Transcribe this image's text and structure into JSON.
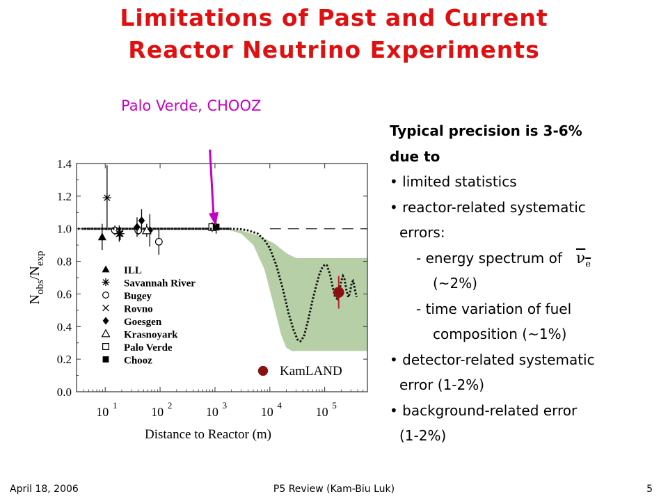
{
  "slide": {
    "title_line1": "Limitations of Past and Current",
    "title_line2": "Reactor Neutrino Experiments",
    "callout": "Palo Verde, CHOOZ",
    "text_lines": [
      {
        "text": "Typical precision is 3-6%",
        "indent": 0,
        "bold": true
      },
      {
        "text": "due to",
        "indent": 0,
        "bold": true
      },
      {
        "text": "• limited statistics",
        "indent": 0,
        "bold": false
      },
      {
        "text": "• reactor-related systematic",
        "indent": 0,
        "bold": false
      },
      {
        "text": "errors:",
        "indent": 14,
        "bold": false
      },
      {
        "text": "- energy spectrum of",
        "indent": 38,
        "bold": false,
        "symbol": "ν",
        "symbol_sub": "e"
      },
      {
        "text": "(~2%)",
        "indent": 62,
        "bold": false
      },
      {
        "text": "- time variation of fuel",
        "indent": 38,
        "bold": false
      },
      {
        "text": "composition (~1%)",
        "indent": 62,
        "bold": false
      },
      {
        "text": "• detector-related systematic",
        "indent": 0,
        "bold": false
      },
      {
        "text": "error (1-2%)",
        "indent": 14,
        "bold": false
      },
      {
        "text": "• background-related error",
        "indent": 0,
        "bold": false
      },
      {
        "text": "(1-2%)",
        "indent": 14,
        "bold": false
      }
    ],
    "footer_date": "April 18, 2006",
    "footer_center": "P5 Review (Kam-Biu Luk)",
    "footer_page": "5"
  },
  "chart_data": {
    "type": "scatter",
    "xlabel": "Distance to Reactor (m)",
    "ylabel": "N",
    "ylabel_sub1": "obs",
    "ylabel_mid": "/N",
    "ylabel_sub2": "exp",
    "xscale": "log",
    "xlim": [
      3,
      600000
    ],
    "ylim": [
      0.0,
      1.4
    ],
    "x_ticks": [
      {
        "value": 10,
        "base": "10",
        "exp": "1"
      },
      {
        "value": 100,
        "base": "10",
        "exp": "2"
      },
      {
        "value": 1000,
        "base": "10",
        "exp": "3"
      },
      {
        "value": 10000,
        "base": "10",
        "exp": "4"
      },
      {
        "value": 100000,
        "base": "10",
        "exp": "5"
      }
    ],
    "y_ticks": [
      {
        "value": 0.0,
        "label": "0.0"
      },
      {
        "value": 0.2,
        "label": "0.2"
      },
      {
        "value": 0.4,
        "label": "0.4"
      },
      {
        "value": 0.6,
        "label": "0.6"
      },
      {
        "value": 0.8,
        "label": "0.8"
      },
      {
        "value": 1.0,
        "label": "1.0"
      },
      {
        "value": 1.2,
        "label": "1.2"
      },
      {
        "value": 1.4,
        "label": "1.4"
      }
    ],
    "series": [
      {
        "name": "ILL",
        "marker": "triangle-filled",
        "points": [
          {
            "x": 8.8,
            "y": 0.95,
            "err": 0.08
          }
        ]
      },
      {
        "name": "Savannah River",
        "marker": "asterisk",
        "points": [
          {
            "x": 10.8,
            "y": 1.19,
            "err": 0.2
          },
          {
            "x": 18.8,
            "y": 0.97,
            "err": 0.04
          }
        ]
      },
      {
        "name": "Bugey",
        "marker": "circle-open",
        "points": [
          {
            "x": 15,
            "y": 0.99,
            "err": 0.03
          },
          {
            "x": 40,
            "y": 0.99,
            "err": 0.03
          },
          {
            "x": 95,
            "y": 0.92,
            "err": 0.08
          }
        ]
      },
      {
        "name": "Rovno",
        "marker": "x",
        "points": [
          {
            "x": 18,
            "y": 0.97,
            "err": 0.05
          }
        ]
      },
      {
        "name": "Goesgen",
        "marker": "diamond-filled",
        "points": [
          {
            "x": 38,
            "y": 1.01,
            "err": 0.06
          },
          {
            "x": 46,
            "y": 1.05,
            "err": 0.07
          },
          {
            "x": 65,
            "y": 0.99,
            "err": 0.1
          }
        ]
      },
      {
        "name": "Krasnoyark",
        "marker": "triangle-open",
        "points": [
          {
            "x": 57,
            "y": 0.99,
            "err": 0.04
          }
        ]
      },
      {
        "name": "Palo Verde",
        "marker": "square-open",
        "points": [
          {
            "x": 890,
            "y": 1.01,
            "err": 0.03
          }
        ]
      },
      {
        "name": "Chooz",
        "marker": "square-filled",
        "points": [
          {
            "x": 1050,
            "y": 1.01,
            "err": 0.04
          }
        ]
      },
      {
        "name": "KamLAND",
        "marker": "circle-filled-darkred",
        "points": [
          {
            "x": 180000,
            "y": 0.61,
            "err": 0.1
          }
        ]
      }
    ],
    "reference_line": {
      "y": 1.0,
      "style": "dotted"
    },
    "dashed_line": {
      "y": 1.0,
      "x_from": 10000,
      "x_to": 600000
    },
    "band": {
      "color": "#b6cfa6",
      "upper": [
        [
          1500,
          1.0
        ],
        [
          3000,
          0.99
        ],
        [
          6000,
          0.96
        ],
        [
          12000,
          0.91
        ],
        [
          20000,
          0.85
        ],
        [
          30000,
          0.82
        ],
        [
          600000,
          0.82
        ]
      ],
      "lower": [
        [
          1500,
          1.0
        ],
        [
          3000,
          0.97
        ],
        [
          5000,
          0.9
        ],
        [
          8000,
          0.75
        ],
        [
          12000,
          0.52
        ],
        [
          16000,
          0.35
        ],
        [
          20000,
          0.27
        ],
        [
          25000,
          0.25
        ],
        [
          600000,
          0.25
        ]
      ]
    },
    "oscillation_curve": {
      "style": "dotted",
      "points": [
        [
          4,
          1.0
        ],
        [
          2000,
          1.0
        ],
        [
          3000,
          0.997
        ],
        [
          4000,
          0.99
        ],
        [
          6000,
          0.97
        ],
        [
          8000,
          0.93
        ],
        [
          10000,
          0.88
        ],
        [
          13000,
          0.78
        ],
        [
          17000,
          0.64
        ],
        [
          22000,
          0.48
        ],
        [
          27000,
          0.38
        ],
        [
          32000,
          0.32
        ],
        [
          36000,
          0.31
        ],
        [
          42000,
          0.34
        ],
        [
          50000,
          0.44
        ],
        [
          60000,
          0.56
        ],
        [
          70000,
          0.65
        ],
        [
          80000,
          0.72
        ],
        [
          90000,
          0.76
        ],
        [
          100000,
          0.78
        ],
        [
          110000,
          0.775
        ],
        [
          125000,
          0.72
        ],
        [
          140000,
          0.64
        ],
        [
          155000,
          0.58
        ],
        [
          170000,
          0.57
        ],
        [
          185000,
          0.62
        ],
        [
          200000,
          0.68
        ],
        [
          215000,
          0.71
        ],
        [
          230000,
          0.69
        ],
        [
          250000,
          0.62
        ],
        [
          270000,
          0.58
        ],
        [
          290000,
          0.61
        ],
        [
          310000,
          0.67
        ],
        [
          330000,
          0.68
        ],
        [
          350000,
          0.64
        ],
        [
          380000,
          0.58
        ]
      ]
    },
    "colors": {
      "kamland": "#8b1111",
      "band": "#b6cfa6",
      "axis": "#333333"
    }
  }
}
